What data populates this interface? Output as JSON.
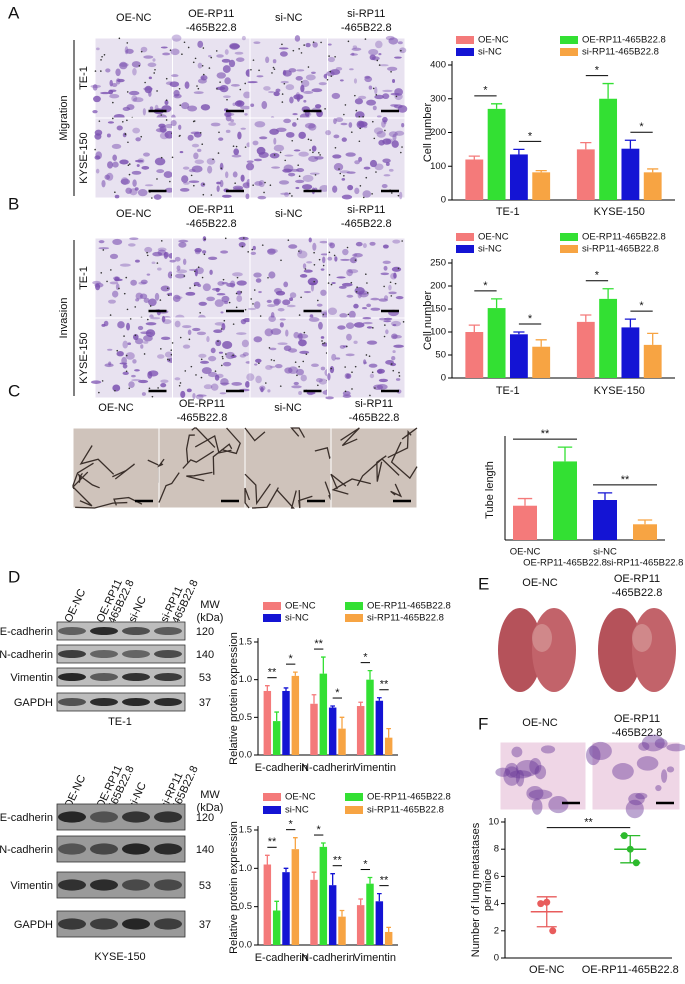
{
  "figure": {
    "A": {
      "label": "A",
      "columns": [
        [
          "OE-NC"
        ],
        [
          "OE-RP11",
          "-465B22.8"
        ],
        [
          "si-NC"
        ],
        [
          "si-RP11",
          "-465B22.8"
        ]
      ],
      "rows": [
        "TE-1",
        "KYSE-150"
      ],
      "assay": "Migration"
    },
    "B": {
      "label": "B",
      "columns": [
        [
          "OE-NC"
        ],
        [
          "OE-RP11",
          "-465B22.8"
        ],
        [
          "si-NC"
        ],
        [
          "si-RP11",
          "-465B22.8"
        ]
      ],
      "rows": [
        "TE-1",
        "KYSE-150"
      ],
      "assay": "Invasion"
    },
    "C": {
      "label": "C",
      "columns": [
        [
          "OE-NC"
        ],
        [
          "OE-RP11",
          "-465B22.8"
        ],
        [
          "si-NC"
        ],
        [
          "si-RP11",
          "-465B22.8"
        ]
      ]
    },
    "D": {
      "label": "D",
      "blots": [
        {
          "lanes": [
            [
              "OE-NC"
            ],
            [
              "OE-RP11",
              "-465B22.8"
            ],
            [
              "si-NC"
            ],
            [
              "si-RP11",
              "-465B22.8"
            ]
          ],
          "proteins": [
            "E-cadherin",
            "N-cadherin",
            "Vimentin",
            "GAPDH"
          ],
          "mw_title": [
            "MW",
            "(kDa)"
          ],
          "mw": [
            120,
            140,
            53,
            37
          ],
          "cell_line": "TE-1"
        },
        {
          "lanes": [
            [
              "OE-NC"
            ],
            [
              "OE-RP11",
              "-465B22.8"
            ],
            [
              "si-NC"
            ],
            [
              "si-RP11",
              "-465B22.8"
            ]
          ],
          "proteins": [
            "E-cadherin",
            "N-cadherin",
            "Vimentin",
            "GAPDH"
          ],
          "mw_title": [
            "MW",
            "(kDa)"
          ],
          "mw": [
            120,
            140,
            53,
            37
          ],
          "cell_line": "KYSE-150"
        }
      ]
    },
    "E": {
      "label": "E",
      "columns": [
        [
          "OE-NC"
        ],
        [
          "OE-RP11",
          "-465B22.8"
        ]
      ]
    },
    "F": {
      "label": "F",
      "columns": [
        [
          "OE-NC"
        ],
        [
          "OE-RP11",
          "-465B22.8"
        ]
      ]
    }
  },
  "chart_data": [
    {
      "type": "bar",
      "ylabel": "Cell number",
      "categories": [
        "TE-1",
        "KYSE-150"
      ],
      "series": [
        {
          "name": "OE-NC",
          "color": "#f47a7a",
          "values": [
            120,
            150
          ],
          "errors": [
            10,
            20
          ]
        },
        {
          "name": "OE-RP11-465B22.8",
          "color": "#33e033",
          "values": [
            270,
            300
          ],
          "errors": [
            15,
            45
          ]
        },
        {
          "name": "si-NC",
          "color": "#1414d4",
          "values": [
            135,
            152
          ],
          "errors": [
            15,
            25
          ]
        },
        {
          "name": "si-RP11-465B22.8",
          "color": "#f7a443",
          "values": [
            82,
            82
          ],
          "errors": [
            5,
            10
          ]
        }
      ],
      "ylim": [
        0,
        400
      ],
      "yticks": [
        0,
        100,
        200,
        300,
        400
      ],
      "significance": [
        "*",
        "*",
        "*",
        "*"
      ]
    },
    {
      "type": "bar",
      "ylabel": "Cell number",
      "categories": [
        "TE-1",
        "KYSE-150"
      ],
      "series": [
        {
          "name": "OE-NC",
          "color": "#f47a7a",
          "values": [
            100,
            122
          ],
          "errors": [
            15,
            15
          ]
        },
        {
          "name": "OE-RP11-465B22.8",
          "color": "#33e033",
          "values": [
            152,
            172
          ],
          "errors": [
            20,
            22
          ]
        },
        {
          "name": "si-NC",
          "color": "#1414d4",
          "values": [
            95,
            110
          ],
          "errors": [
            5,
            18
          ]
        },
        {
          "name": "si-RP11-465B22.8",
          "color": "#f7a443",
          "values": [
            68,
            72
          ],
          "errors": [
            15,
            25
          ]
        }
      ],
      "ylim": [
        0,
        250
      ],
      "yticks": [
        0,
        50,
        100,
        150,
        200,
        250
      ],
      "significance": [
        "*",
        "*",
        "*",
        "*"
      ]
    },
    {
      "type": "bar",
      "ylabel": "Tube length",
      "categories": [
        "OE-NC",
        "OE-RP11-465B22.8",
        "si-NC",
        "si-RP11-465B22.8"
      ],
      "values": [
        24,
        55,
        28,
        11
      ],
      "errors": [
        5,
        10,
        5,
        3
      ],
      "colors": [
        "#f47a7a",
        "#33e033",
        "#1414d4",
        "#f7a443"
      ],
      "ylim": [
        0,
        70
      ],
      "significance": [
        "**",
        "**"
      ]
    },
    {
      "type": "bar",
      "ylabel": "Relative protein expression",
      "categories": [
        "E-cadherin",
        "N-cadherin",
        "Vimentin"
      ],
      "series": [
        {
          "name": "OE-NC",
          "color": "#f47a7a",
          "values": [
            0.85,
            0.68,
            0.65
          ],
          "errors": [
            0.07,
            0.12,
            0.05
          ]
        },
        {
          "name": "OE-RP11-465B22.8",
          "color": "#33e033",
          "values": [
            0.45,
            1.08,
            1.0
          ],
          "errors": [
            0.12,
            0.22,
            0.12
          ]
        },
        {
          "name": "si-NC",
          "color": "#1414d4",
          "values": [
            0.85,
            0.63,
            0.72
          ],
          "errors": [
            0.04,
            0.02,
            0.04
          ]
        },
        {
          "name": "si-RP11-465B22.8",
          "color": "#f7a443",
          "values": [
            1.05,
            0.35,
            0.23
          ],
          "errors": [
            0.05,
            0.15,
            0.12
          ]
        }
      ],
      "ylim": [
        0,
        1.5
      ],
      "yticks": [
        {
          "value": 0,
          "label": "0.0"
        },
        0.5,
        {
          "value": 1,
          "label": "1.0"
        },
        1.5
      ],
      "significance": [
        "**",
        "*",
        "**",
        "*",
        "*",
        "**"
      ]
    },
    {
      "type": "bar",
      "ylabel": "Relative protein expression",
      "categories": [
        "E-cadherin",
        "N-cadherin",
        "Vimentin"
      ],
      "series": [
        {
          "name": "OE-NC",
          "color": "#f47a7a",
          "values": [
            1.05,
            0.85,
            0.52
          ],
          "errors": [
            0.12,
            0.1,
            0.08
          ]
        },
        {
          "name": "OE-RP11-465B22.8",
          "color": "#33e033",
          "values": [
            0.45,
            1.28,
            0.8
          ],
          "errors": [
            0.12,
            0.05,
            0.08
          ]
        },
        {
          "name": "si-NC",
          "color": "#1414d4",
          "values": [
            0.95,
            0.78,
            0.57
          ],
          "errors": [
            0.05,
            0.15,
            0.1
          ]
        },
        {
          "name": "si-RP11-465B22.8",
          "color": "#f7a443",
          "values": [
            1.25,
            0.37,
            0.17
          ],
          "errors": [
            0.15,
            0.08,
            0.06
          ]
        }
      ],
      "ylim": [
        0,
        1.5
      ],
      "yticks": [
        {
          "value": 0,
          "label": "0.0"
        },
        0.5,
        {
          "value": 1,
          "label": "1.0"
        },
        1.5
      ],
      "significance": [
        "**",
        "*",
        "*",
        "**",
        "*",
        "**"
      ]
    },
    {
      "type": "dot",
      "ylabel": [
        "Number of lung metastases",
        "per mice"
      ],
      "categories": [
        "OE-NC",
        "OE-RP11-465B22.8"
      ],
      "values": [
        [
          4,
          4.1,
          2
        ],
        [
          9,
          8,
          7
        ]
      ],
      "means": [
        3.4,
        8
      ],
      "sd": [
        1.1,
        1
      ],
      "colors": [
        "#e85c5c",
        "#2dba2d"
      ],
      "ylim": [
        0,
        10
      ],
      "yticks": [
        0,
        2,
        4,
        6,
        8,
        10
      ],
      "significance": [
        "**"
      ]
    }
  ]
}
